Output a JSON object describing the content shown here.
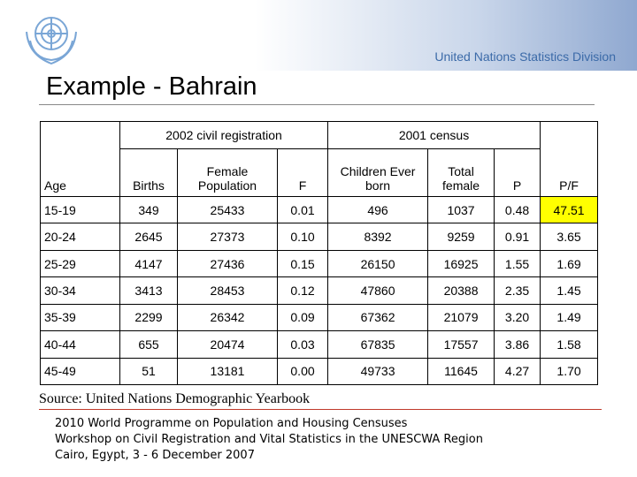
{
  "header": {
    "org": "United Nations Statistics Division"
  },
  "title": "Example - Bahrain",
  "table": {
    "groups": [
      "2002 civil registration",
      "2001 census"
    ],
    "columns": [
      "Age",
      "Births",
      "Female Population",
      "F",
      "Children Ever born",
      "Total female",
      "P",
      "P/F"
    ],
    "rows": [
      [
        "15-19",
        "349",
        "25433",
        "0.01",
        "496",
        "1037",
        "0.48",
        "47.51"
      ],
      [
        "20-24",
        "2645",
        "27373",
        "0.10",
        "8392",
        "9259",
        "0.91",
        "3.65"
      ],
      [
        "25-29",
        "4147",
        "27436",
        "0.15",
        "26150",
        "16925",
        "1.55",
        "1.69"
      ],
      [
        "30-34",
        "3413",
        "28453",
        "0.12",
        "47860",
        "20388",
        "2.35",
        "1.45"
      ],
      [
        "35-39",
        "2299",
        "26342",
        "0.09",
        "67362",
        "21079",
        "3.20",
        "1.49"
      ],
      [
        "40-44",
        "655",
        "20474",
        "0.03",
        "67835",
        "17557",
        "3.86",
        "1.58"
      ],
      [
        "45-49",
        "51",
        "13181",
        "0.00",
        "49733",
        "11645",
        "4.27",
        "1.70"
      ]
    ]
  },
  "source": "Source: United Nations Demographic Yearbook",
  "footer": [
    "2010 World Programme on Population and Housing Censuses",
    "Workshop on Civil Registration and Vital Statistics in the UNESCWA Region",
    "Cairo, Egypt, 3 - 6 December 2007"
  ]
}
